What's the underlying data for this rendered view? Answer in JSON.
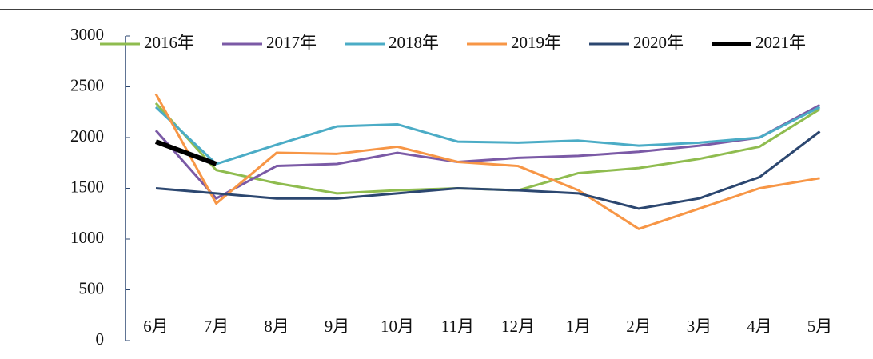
{
  "chart_data": {
    "type": "line",
    "categories": [
      "6月",
      "7月",
      "8月",
      "9月",
      "10月",
      "11月",
      "12月",
      "1月",
      "2月",
      "3月",
      "4月",
      "5月"
    ],
    "series": [
      {
        "name": "2016年",
        "color": "#8fbc4f",
        "values": [
          2340,
          1680,
          1550,
          1450,
          1480,
          1500,
          1480,
          1650,
          1700,
          1790,
          1910,
          2280
        ]
      },
      {
        "name": "2017年",
        "color": "#7b5aa6",
        "values": [
          2070,
          1400,
          1720,
          1740,
          1850,
          1760,
          1800,
          1820,
          1860,
          1920,
          2000,
          2320
        ]
      },
      {
        "name": "2018年",
        "color": "#4bacc6",
        "values": [
          2300,
          1740,
          1930,
          2110,
          2130,
          1960,
          1950,
          1970,
          1920,
          1950,
          2000,
          2300
        ]
      },
      {
        "name": "2019年",
        "color": "#f79646",
        "values": [
          2430,
          1350,
          1850,
          1840,
          1910,
          1760,
          1720,
          1480,
          1100,
          1300,
          1500,
          1600
        ]
      },
      {
        "name": "2020年",
        "color": "#2c4770",
        "values": [
          1500,
          1450,
          1400,
          1400,
          1450,
          1500,
          1480,
          1450,
          1300,
          1400,
          1610,
          2060
        ]
      },
      {
        "name": "2021年",
        "color": "#000000",
        "values": [
          1960,
          1740,
          null,
          null,
          null,
          null,
          null,
          null,
          null,
          null,
          null,
          null
        ]
      }
    ],
    "ylim": [
      0,
      3000
    ],
    "yticks": [
      0,
      500,
      1000,
      1500,
      2000,
      2500,
      3000
    ]
  }
}
